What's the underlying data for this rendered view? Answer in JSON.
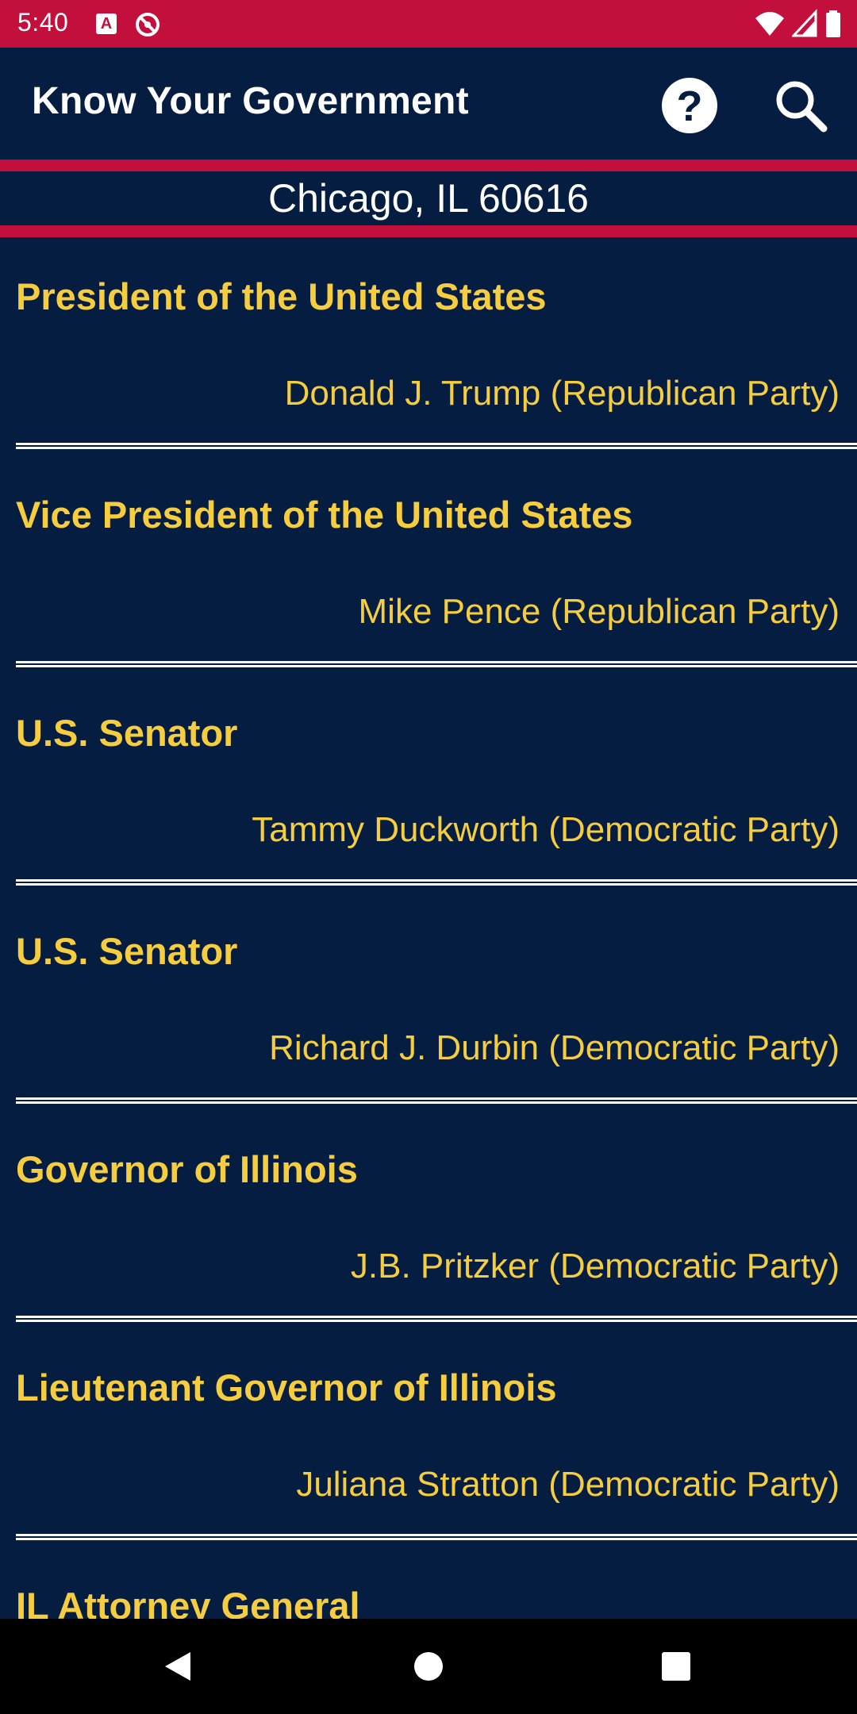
{
  "status_bar": {
    "time": "5:40",
    "a_icon_letter": "A",
    "icons": [
      "a-notification-icon",
      "sync-off-icon",
      "wifi-icon",
      "cell-signal-icon",
      "battery-icon"
    ]
  },
  "app_bar": {
    "title": "Know Your Government",
    "help_symbol": "?",
    "help_icon": "help-icon",
    "search_icon": "search-icon"
  },
  "location": "Chicago, IL 60616",
  "offices": [
    {
      "title": "President of the United States",
      "official": "Donald J. Trump (Republican Party)"
    },
    {
      "title": "Vice President of the United States",
      "official": "Mike Pence (Republican Party)"
    },
    {
      "title": "U.S. Senator",
      "official": "Tammy Duckworth (Democratic Party)"
    },
    {
      "title": "U.S. Senator",
      "official": "Richard J. Durbin (Democratic Party)"
    },
    {
      "title": "Governor of Illinois",
      "official": "J.B. Pritzker (Democratic Party)"
    },
    {
      "title": "Lieutenant Governor of Illinois",
      "official": "Juliana Stratton (Democratic Party)"
    },
    {
      "title": "IL Attorney General",
      "official": ""
    }
  ],
  "nav_bar": {
    "icons": [
      "back-icon",
      "home-icon",
      "recents-icon"
    ]
  },
  "colors": {
    "accent_red": "#c20f3c",
    "background_navy": "#061d42",
    "text_gold": "#f5cd3f",
    "text_white": "#ffffff"
  }
}
